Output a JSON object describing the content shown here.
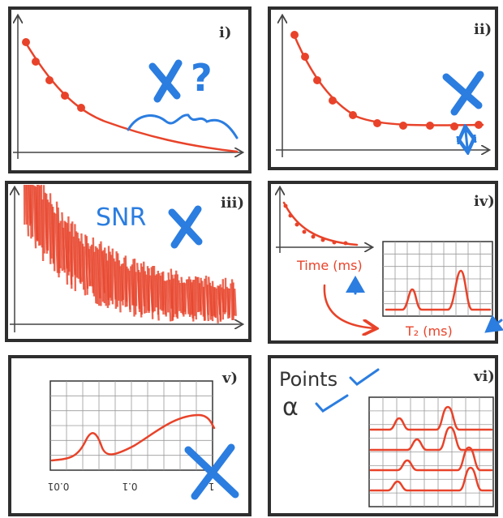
{
  "panels": [
    {
      "label": "i)",
      "annotation": "?"
    },
    {
      "label": "ii)"
    },
    {
      "label": "iii)",
      "annotation": "SNR"
    },
    {
      "label": "iv)",
      "x_label": "Time (ms)",
      "t2_label": "T₂ (ms)"
    },
    {
      "label": "v)",
      "ticks": [
        "0.01",
        "0.1",
        "1.0"
      ]
    },
    {
      "label": "vi)",
      "criteria": [
        "Points",
        "α"
      ]
    }
  ]
}
